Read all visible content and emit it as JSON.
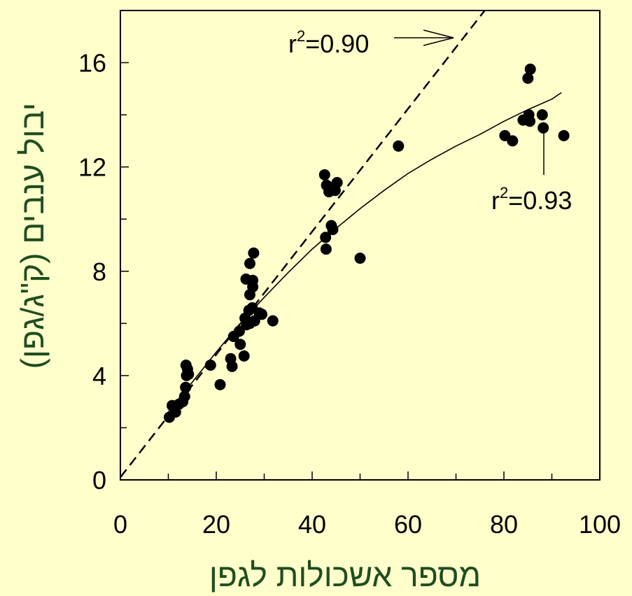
{
  "chart_data": {
    "type": "scatter",
    "title": "",
    "xlabel": "מספר אשכולות לגפן",
    "ylabel": "יבול ענבים (ק\"ג/גפן)",
    "xlim": [
      0,
      100
    ],
    "ylim": [
      0,
      18
    ],
    "x_ticks": [
      0,
      20,
      40,
      60,
      80,
      100
    ],
    "y_ticks": [
      0,
      4,
      8,
      12,
      16
    ],
    "grid": false,
    "colors": {
      "background": "#ffffcc",
      "axis_title": "#1f4d1f",
      "points": "#000000"
    },
    "series": [
      {
        "type": "scatter",
        "points": [
          [
            10.2,
            2.4
          ],
          [
            10.8,
            2.85
          ],
          [
            11.5,
            2.6
          ],
          [
            12.2,
            2.9
          ],
          [
            13.0,
            3.0
          ],
          [
            13.4,
            3.2
          ],
          [
            13.6,
            3.55
          ],
          [
            13.8,
            4.0
          ],
          [
            13.7,
            4.4
          ],
          [
            14.0,
            4.25
          ],
          [
            14.2,
            4.05
          ],
          [
            18.8,
            4.4
          ],
          [
            20.8,
            3.65
          ],
          [
            23.0,
            4.65
          ],
          [
            23.3,
            4.35
          ],
          [
            23.6,
            5.5
          ],
          [
            24.8,
            5.7
          ],
          [
            25.0,
            5.2
          ],
          [
            25.8,
            4.75
          ],
          [
            26.0,
            6.2
          ],
          [
            26.3,
            5.95
          ],
          [
            26.2,
            7.7
          ],
          [
            26.8,
            6.5
          ],
          [
            27.0,
            6.0
          ],
          [
            27.0,
            8.3
          ],
          [
            27.0,
            7.1
          ],
          [
            27.5,
            6.6
          ],
          [
            27.6,
            7.4
          ],
          [
            27.6,
            7.65
          ],
          [
            27.8,
            8.7
          ],
          [
            28.0,
            6.1
          ],
          [
            29.0,
            6.4
          ],
          [
            29.5,
            6.35
          ],
          [
            31.8,
            6.1
          ],
          [
            42.6,
            11.7
          ],
          [
            42.8,
            9.3
          ],
          [
            42.9,
            8.85
          ],
          [
            43.0,
            11.3
          ],
          [
            43.5,
            11.05
          ],
          [
            44.0,
            9.75
          ],
          [
            44.3,
            9.6
          ],
          [
            44.8,
            11.1
          ],
          [
            45.2,
            11.4
          ],
          [
            50.0,
            8.5
          ],
          [
            58.0,
            12.8
          ],
          [
            80.2,
            13.2
          ],
          [
            81.8,
            13.0
          ],
          [
            84.0,
            13.8
          ],
          [
            85.0,
            15.4
          ],
          [
            85.2,
            14.0
          ],
          [
            85.4,
            13.75
          ],
          [
            85.5,
            15.75
          ],
          [
            88.0,
            14.0
          ],
          [
            88.2,
            13.5
          ],
          [
            92.5,
            13.2
          ]
        ]
      },
      {
        "type": "line",
        "style": "dashed",
        "x": [
          0,
          76
        ],
        "y": [
          0.1,
          18
        ]
      },
      {
        "type": "line",
        "style": "solid",
        "x": [
          10,
          15,
          20,
          25,
          30,
          35,
          40,
          45,
          50,
          55,
          60,
          65,
          70,
          75,
          80,
          85,
          90,
          92
        ],
        "y": [
          2.6,
          3.75,
          4.9,
          6.0,
          7.0,
          7.95,
          8.85,
          9.65,
          10.4,
          11.1,
          11.75,
          12.3,
          12.8,
          13.25,
          13.75,
          14.2,
          14.6,
          14.85
        ]
      }
    ],
    "annotations": [
      {
        "label": "r",
        "sup": "2",
        "value": "=0.90"
      },
      {
        "label": "r",
        "sup": "2",
        "value": "=0.93"
      }
    ]
  }
}
